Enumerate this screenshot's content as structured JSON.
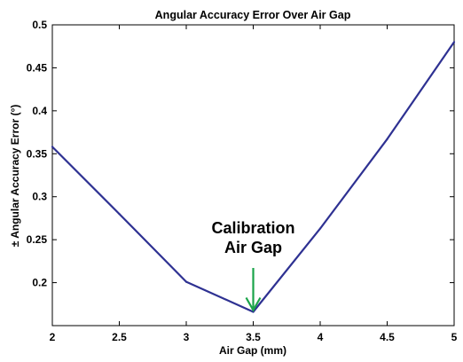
{
  "chart_data": {
    "type": "line",
    "title": "Angular Accuracy Error Over Air Gap",
    "xlabel": "Air Gap (mm)",
    "ylabel": "± Angular Accuracy Error (°)",
    "xlim": [
      2,
      5
    ],
    "ylim": [
      0.15,
      0.5
    ],
    "xticks": [
      2,
      2.5,
      3,
      3.5,
      4,
      4.5,
      5
    ],
    "xtick_labels": [
      "2",
      "2.5",
      "3",
      "3.5",
      "4",
      "4.5",
      "5"
    ],
    "yticks": [
      0.2,
      0.25,
      0.3,
      0.35,
      0.4,
      0.45,
      0.5
    ],
    "ytick_labels": [
      "0.2",
      "0.25",
      "0.3",
      "0.35",
      "0.4",
      "0.45",
      "0.5"
    ],
    "grid": false,
    "series": [
      {
        "x": [
          2,
          2.5,
          3,
          3.5,
          4,
          4.5,
          5
        ],
        "y": [
          0.358,
          0.28,
          0.201,
          0.166,
          0.263,
          0.367,
          0.48
        ],
        "color": "#2e3192"
      }
    ],
    "annotation": {
      "lines": [
        "Calibration",
        "Air Gap"
      ],
      "x": 3.5,
      "y": 0.166,
      "arrow_color": "#1aa44a"
    }
  }
}
